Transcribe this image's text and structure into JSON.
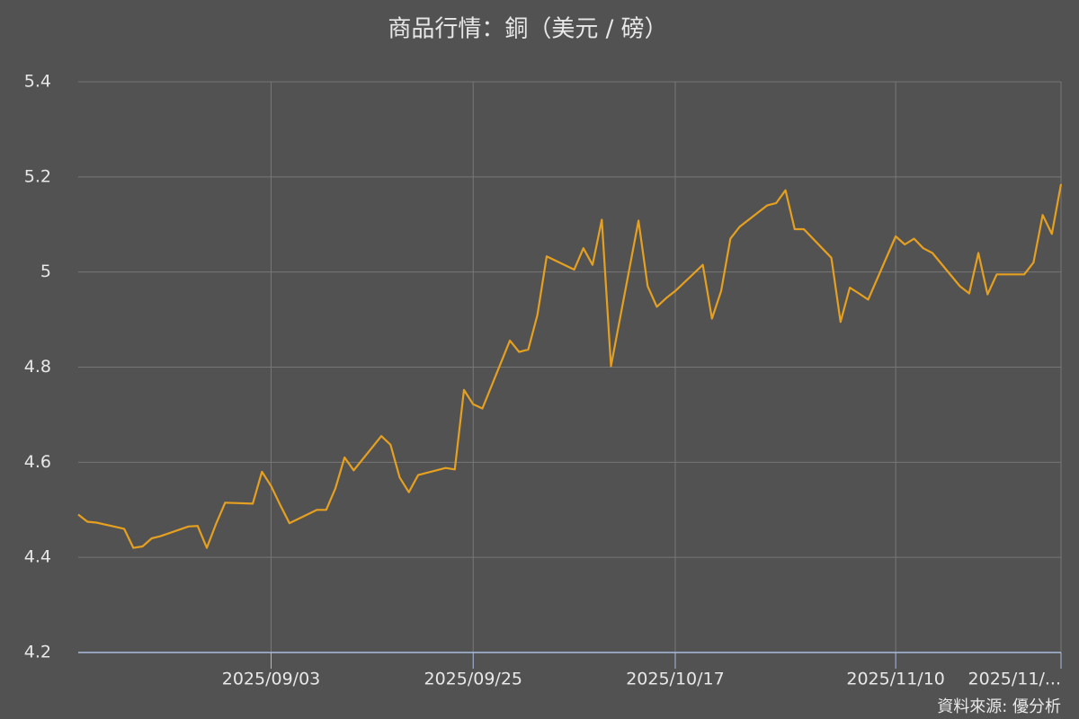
{
  "chart_data": {
    "type": "line",
    "title": "商品行情：銅（美元 / 磅）",
    "source": "資料來源: 優分析",
    "x": [
      "2025/08/13",
      "2025/08/14",
      "2025/08/15",
      "2025/08/18",
      "2025/08/19",
      "2025/08/20",
      "2025/08/21",
      "2025/08/22",
      "2025/08/25",
      "2025/08/26",
      "2025/08/27",
      "2025/08/28",
      "2025/08/29",
      "2025/09/01",
      "2025/09/02",
      "2025/09/03",
      "2025/09/04",
      "2025/09/05",
      "2025/09/08",
      "2025/09/09",
      "2025/09/10",
      "2025/09/11",
      "2025/09/12",
      "2025/09/15",
      "2025/09/16",
      "2025/09/17",
      "2025/09/18",
      "2025/09/19",
      "2025/09/22",
      "2025/09/23",
      "2025/09/24",
      "2025/09/25",
      "2025/09/26",
      "2025/09/29",
      "2025/09/30",
      "2025/10/01",
      "2025/10/02",
      "2025/10/03",
      "2025/10/06",
      "2025/10/07",
      "2025/10/08",
      "2025/10/09",
      "2025/10/10",
      "2025/10/13",
      "2025/10/14",
      "2025/10/15",
      "2025/10/16",
      "2025/10/17",
      "2025/10/20",
      "2025/10/21",
      "2025/10/22",
      "2025/10/23",
      "2025/10/24",
      "2025/10/27",
      "2025/10/28",
      "2025/10/29",
      "2025/10/30",
      "2025/10/31",
      "2025/11/03",
      "2025/11/04",
      "2025/11/05",
      "2025/11/06",
      "2025/11/07",
      "2025/11/10",
      "2025/11/11",
      "2025/11/12",
      "2025/11/13",
      "2025/11/14",
      "2025/11/17",
      "2025/11/18",
      "2025/11/19",
      "2025/11/20",
      "2025/11/21",
      "2025/11/24",
      "2025/11/25",
      "2025/11/26",
      "2025/11/27",
      "2025/11/28"
    ],
    "series": [
      {
        "color": "#e6a020",
        "values": [
          4.49,
          4.475,
          4.473,
          4.46,
          4.42,
          4.423,
          4.44,
          4.445,
          4.465,
          4.466,
          4.42,
          4.47,
          4.515,
          4.513,
          4.58,
          4.55,
          4.51,
          4.472,
          4.5,
          4.5,
          4.545,
          4.61,
          4.583,
          4.655,
          4.637,
          4.568,
          4.537,
          4.573,
          4.588,
          4.585,
          4.752,
          4.722,
          4.713,
          4.856,
          4.832,
          4.837,
          4.91,
          5.033,
          5.005,
          5.05,
          5.015,
          5.11,
          4.802,
          5.108,
          4.97,
          4.927,
          4.945,
          4.96,
          5.015,
          4.902,
          4.96,
          5.07,
          5.095,
          5.14,
          5.145,
          5.172,
          5.09,
          5.09,
          5.03,
          4.895,
          4.967,
          4.955,
          4.942,
          5.075,
          5.058,
          5.07,
          5.05,
          5.04,
          4.97,
          4.955,
          5.04,
          4.953,
          4.995,
          4.995,
          5.02,
          5.12,
          5.08,
          5.185
        ]
      }
    ],
    "xlim": [
      "2025/08/13",
      "2025/11/28"
    ],
    "xticks": [
      "2025/09/03",
      "2025/09/25",
      "2025/10/17",
      "2025/11/10",
      {
        "value": "2025/11/28",
        "label": "2025/11/..."
      }
    ],
    "ylim": [
      4.2,
      5.4
    ],
    "yticks": [
      4.2,
      4.4,
      4.6,
      4.8,
      5,
      5.2,
      5.4
    ],
    "grid": true
  }
}
